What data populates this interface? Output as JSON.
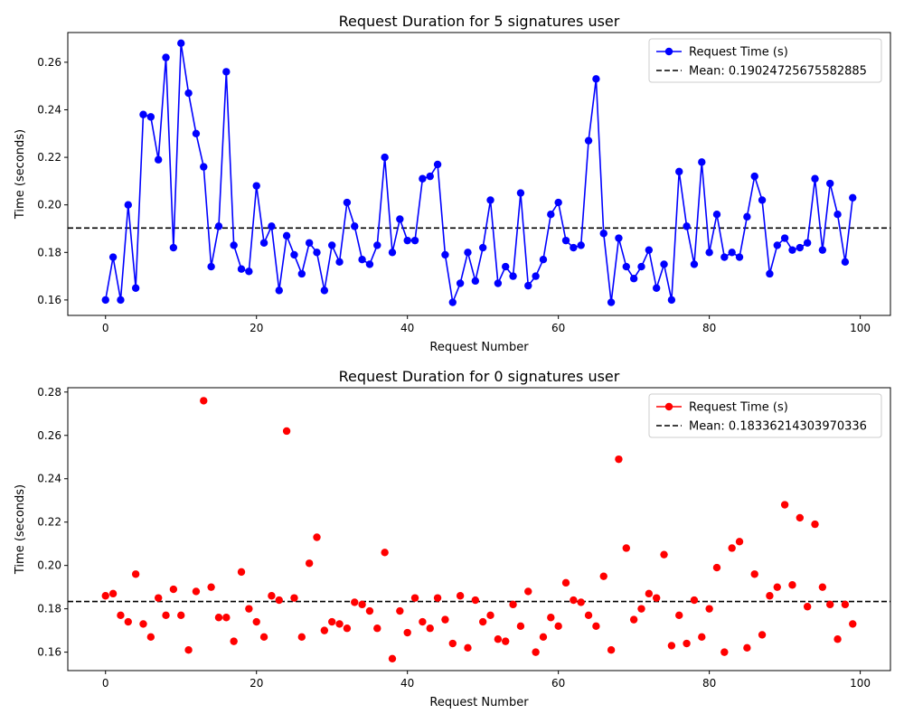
{
  "chart_data": [
    {
      "type": "line",
      "title": "Request Duration for 5 signatures user",
      "xlabel": "Request Number",
      "ylabel": "Time (seconds)",
      "xlim": [
        -5,
        104
      ],
      "ylim": [
        0.1535,
        0.2725
      ],
      "xticks": [
        0,
        20,
        40,
        60,
        80,
        100
      ],
      "yticks": [
        0.16,
        0.18,
        0.2,
        0.22,
        0.24,
        0.26
      ],
      "ytick_labels": [
        "0.16",
        "0.18",
        "0.20",
        "0.22",
        "0.24",
        "0.26"
      ],
      "legend": {
        "placement": "top-right",
        "series_label": "Request Time (s)",
        "mean_label": "Mean: 0.19024725675582885"
      },
      "mean": 0.19024725675582885,
      "series_color": "#0000ff",
      "mean_color": "#000000",
      "x": [
        0,
        1,
        2,
        3,
        4,
        5,
        6,
        7,
        8,
        9,
        10,
        11,
        12,
        13,
        14,
        15,
        16,
        17,
        18,
        19,
        20,
        21,
        22,
        23,
        24,
        25,
        26,
        27,
        28,
        29,
        30,
        31,
        32,
        33,
        34,
        35,
        36,
        37,
        38,
        39,
        40,
        41,
        42,
        43,
        44,
        45,
        46,
        47,
        48,
        49,
        50,
        51,
        52,
        53,
        54,
        55,
        56,
        57,
        58,
        59,
        60,
        61,
        62,
        63,
        64,
        65,
        66,
        67,
        68,
        69,
        70,
        71,
        72,
        73,
        74,
        75,
        76,
        77,
        78,
        79,
        80,
        81,
        82,
        83,
        84,
        85,
        86,
        87,
        88,
        89,
        90,
        91,
        92,
        93,
        94,
        95,
        96,
        97,
        98,
        99
      ],
      "values": [
        0.16,
        0.178,
        0.16,
        0.2,
        0.165,
        0.238,
        0.237,
        0.219,
        0.262,
        0.182,
        0.268,
        0.247,
        0.23,
        0.216,
        0.174,
        0.191,
        0.256,
        0.183,
        0.173,
        0.172,
        0.208,
        0.184,
        0.191,
        0.164,
        0.187,
        0.179,
        0.171,
        0.184,
        0.18,
        0.164,
        0.183,
        0.176,
        0.201,
        0.191,
        0.177,
        0.175,
        0.183,
        0.22,
        0.18,
        0.194,
        0.185,
        0.185,
        0.211,
        0.212,
        0.217,
        0.179,
        0.159,
        0.167,
        0.18,
        0.168,
        0.182,
        0.202,
        0.167,
        0.174,
        0.17,
        0.205,
        0.166,
        0.17,
        0.177,
        0.196,
        0.201,
        0.185,
        0.182,
        0.183,
        0.227,
        0.253,
        0.188,
        0.159,
        0.186,
        0.174,
        0.169,
        0.174,
        0.181,
        0.165,
        0.175,
        0.16,
        0.214,
        0.191,
        0.175,
        0.218,
        0.18,
        0.196,
        0.178,
        0.18,
        0.178,
        0.195,
        0.212,
        0.202,
        0.171,
        0.183,
        0.186,
        0.181,
        0.182,
        0.184,
        0.211,
        0.181,
        0.209,
        0.196,
        0.176,
        0.203
      ]
    },
    {
      "type": "line",
      "title": "Request Duration for 0 signatures user",
      "xlabel": "Request Number",
      "ylabel": "Time (seconds)",
      "xlim": [
        -5,
        104
      ],
      "ylim": [
        0.1515,
        0.282
      ],
      "xticks": [
        0,
        20,
        40,
        60,
        80,
        100
      ],
      "yticks": [
        0.16,
        0.18,
        0.2,
        0.22,
        0.24,
        0.26,
        0.28
      ],
      "ytick_labels": [
        "0.16",
        "0.18",
        "0.20",
        "0.22",
        "0.24",
        "0.26",
        "0.28"
      ],
      "legend": {
        "placement": "top-right",
        "series_label": "Request Time (s)",
        "mean_label": "Mean: 0.18336214303970336"
      },
      "mean": 0.18336214303970336,
      "series_color": "#ff0000",
      "mean_color": "#000000",
      "x": [
        0,
        1,
        2,
        3,
        4,
        5,
        6,
        7,
        8,
        9,
        10,
        11,
        12,
        13,
        14,
        15,
        16,
        17,
        18,
        19,
        20,
        21,
        22,
        23,
        24,
        25,
        26,
        27,
        28,
        29,
        30,
        31,
        32,
        33,
        34,
        35,
        36,
        37,
        38,
        39,
        40,
        41,
        42,
        43,
        44,
        45,
        46,
        47,
        48,
        49,
        50,
        51,
        52,
        53,
        54,
        55,
        56,
        57,
        58,
        59,
        60,
        61,
        62,
        63,
        64,
        65,
        66,
        67,
        68,
        69,
        70,
        71,
        72,
        73,
        74,
        75,
        76,
        77,
        78,
        79,
        80,
        81,
        82,
        83,
        84,
        85,
        86,
        87,
        88,
        89,
        90,
        91,
        92,
        93,
        94,
        95,
        96,
        97,
        98,
        99
      ],
      "values": [
        0.186,
        0.187,
        0.177,
        0.174,
        0.196,
        0.173,
        0.167,
        0.185,
        0.177,
        0.189,
        0.177,
        0.161,
        0.188,
        0.276,
        0.19,
        0.176,
        0.176,
        0.165,
        0.197,
        0.18,
        0.174,
        0.167,
        0.186,
        0.184,
        0.262,
        0.185,
        0.167,
        0.201,
        0.213,
        0.17,
        0.174,
        0.173,
        0.171,
        0.183,
        0.182,
        0.179,
        0.171,
        0.206,
        0.157,
        0.179,
        0.169,
        0.185,
        0.174,
        0.171,
        0.185,
        0.175,
        0.164,
        0.186,
        0.162,
        0.184,
        0.174,
        0.177,
        0.166,
        0.165,
        0.182,
        0.172,
        0.188,
        0.16,
        0.167,
        0.176,
        0.172,
        0.192,
        0.184,
        0.183,
        0.177,
        0.172,
        0.195,
        0.161,
        0.249,
        0.208,
        0.175,
        0.18,
        0.187,
        0.185,
        0.205,
        0.163,
        0.177,
        0.164,
        0.184,
        0.167,
        0.18,
        0.199,
        0.16,
        0.208,
        0.211,
        0.162,
        0.196,
        0.168,
        0.186,
        0.19,
        0.228,
        0.191,
        0.222,
        0.181,
        0.219,
        0.19,
        0.182,
        0.166,
        0.182,
        0.173
      ]
    }
  ]
}
